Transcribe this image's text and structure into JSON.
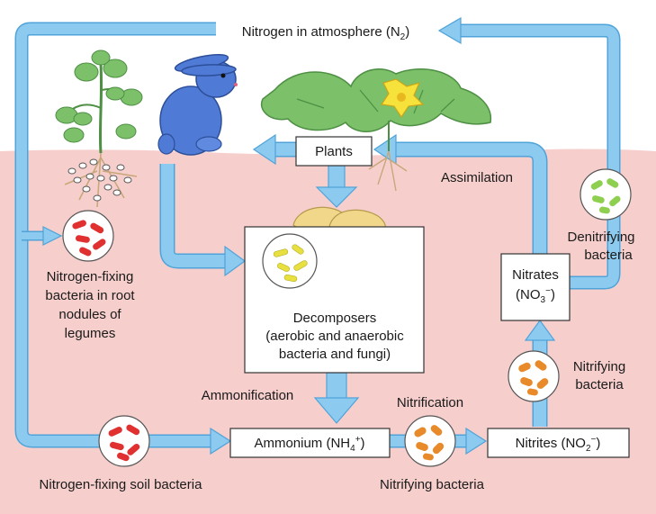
{
  "colors": {
    "sky": "#ffffff",
    "soil": "#f6cfcd",
    "arrow_fill": "#8ccbef",
    "arrow_stroke": "#4fa3d9",
    "plant_leaf": "#7cc06a",
    "plant_dark": "#4e8f44",
    "rabbit": "#4f7bd6",
    "mushroom": "#f3e2a4",
    "bacteria_red": "#e03030",
    "bacteria_orange": "#e88a2a",
    "bacteria_yellow": "#e8e040",
    "bacteria_green": "#8fcf50",
    "nodule": "#ffffff"
  },
  "icons": [
    "plant-icon",
    "rabbit-icon",
    "squash-plant-icon",
    "flower-icon",
    "mushroom-icon",
    "roots-icon",
    "bacteria-icon"
  ],
  "labels": {
    "atmosphere": {
      "before": "Nitrogen in atmosphere (N",
      "sub": "2",
      "after": ")"
    },
    "plants": "Plants",
    "assimilation": "Assimilation",
    "decomposers_line1": "Decomposers",
    "decomposers_line2": "(aerobic and anaerobic",
    "decomposers_line3": "bacteria and fungi)",
    "ammonification": "Ammonification",
    "ammonium": {
      "before": "Ammonium (NH",
      "sub": "4",
      "sup": "+",
      "after": ")"
    },
    "nitrification": "Nitrification",
    "nitrites": {
      "before": "Nitrites (NO",
      "sub": "2",
      "sup": "−",
      "after": ")"
    },
    "nitrates_line1": "Nitrates",
    "nitrates_line2": {
      "before": "(NO",
      "sub": "3",
      "sup": "−",
      "after": ")"
    },
    "nitrifying_upper_line1": "Nitrifying",
    "nitrifying_upper_line2": "bacteria",
    "nitrifying_lower": "Nitrifying bacteria",
    "denitrifying_line1": "Denitrifying",
    "denitrifying_line2": "bacteria",
    "nodule_line1": "Nitrogen-fixing",
    "nodule_line2": "bacteria in root",
    "nodule_line3": "nodules of",
    "nodule_line4": "legumes",
    "soil_bacteria": "Nitrogen-fixing soil bacteria"
  }
}
